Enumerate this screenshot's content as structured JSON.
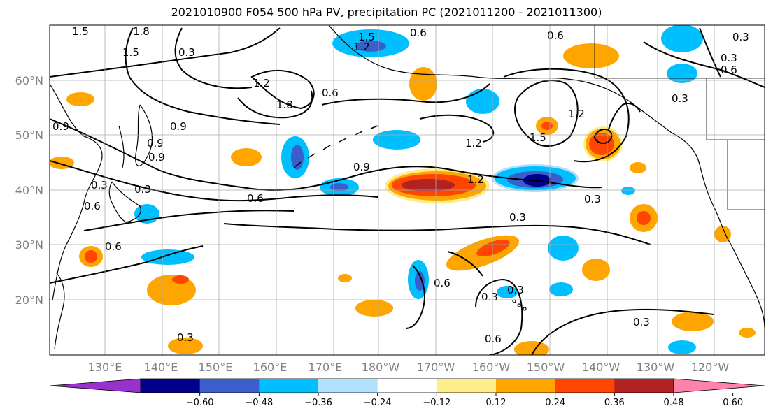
{
  "title": "2021010900 F054 500 hPa PV, precipitation PC (2021011200 - 2021011300)",
  "lat_labels": [
    "60°N",
    "50°N",
    "40°N",
    "30°N",
    "20°N"
  ],
  "lon_labels": [
    "130°E",
    "140°E",
    "150°E",
    "160°E",
    "170°E",
    "180°W",
    "170°W",
    "160°W",
    "150°W",
    "140°W",
    "130°W",
    "120°W"
  ],
  "colorbar": {
    "colors": [
      "#9932CC",
      "#00008B",
      "#3A5FCD",
      "#00BFFF",
      "#B0E2FF",
      "#FFFFFF",
      "#FFEC8B",
      "#FFA500",
      "#FF4500",
      "#B22222",
      "#FF82AB"
    ],
    "ticks": [
      "−0.60",
      "−0.48",
      "−0.36",
      "−0.24",
      "−0.12",
      "0.12",
      "0.24",
      "0.36",
      "0.48",
      "0.60"
    ]
  },
  "contour_labels": [
    "1.5",
    "1.8",
    "1.5",
    "0.3",
    "1.5",
    "1.2",
    "0.6",
    "1.2",
    "1.8",
    "0.6",
    "0.6",
    "1.2",
    "1.2",
    "0.9",
    "0.9",
    "0.3",
    "0.6",
    "0.9",
    "0.6",
    "0.3",
    "0.6",
    "1.5",
    "1.2",
    "0.3",
    "0.3",
    "0.3",
    "0.6",
    "0.3",
    "0.3",
    "0.6",
    "0.3",
    "0.9",
    "0.3",
    "0.6",
    "0.9",
    "0.3",
    "0.3"
  ]
}
